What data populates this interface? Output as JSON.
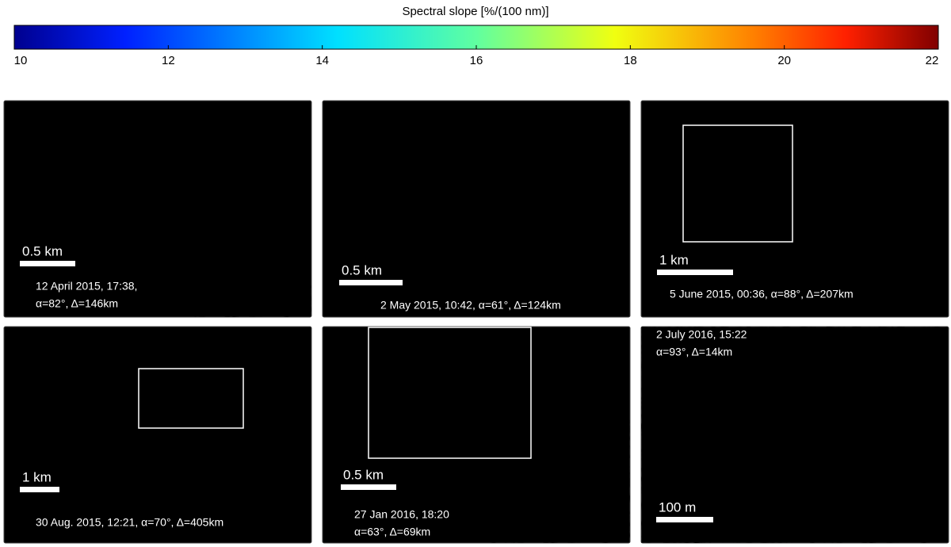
{
  "colorbar": {
    "label": "Spectral slope [%/(100 nm)]",
    "lim": [
      10,
      22
    ],
    "ticks": [
      10,
      12,
      14,
      16,
      18,
      20,
      22
    ]
  },
  "panels": [
    {
      "caption": [
        "12 April 2015, 17:38,",
        "α=82°, Δ=146km"
      ],
      "scale": "0.5 km"
    },
    {
      "caption": [
        "2 May 2015, 10:42, α=61°, Δ=124km"
      ],
      "scale": "0.5 km"
    },
    {
      "caption": [
        "5 June 2015, 00:36, α=88°, Δ=207km"
      ],
      "scale": "1 km"
    },
    {
      "caption": [
        "30 Aug. 2015, 12:21, α=70°, Δ=405km"
      ],
      "scale": "1 km"
    },
    {
      "caption": [
        "27 Jan 2016, 18:20",
        "α=63°, Δ=69km"
      ],
      "scale": "0.5 km"
    },
    {
      "caption": [
        "2 July 2016, 15:22",
        "α=93°, Δ=14km"
      ],
      "scale": "100 m"
    }
  ]
}
